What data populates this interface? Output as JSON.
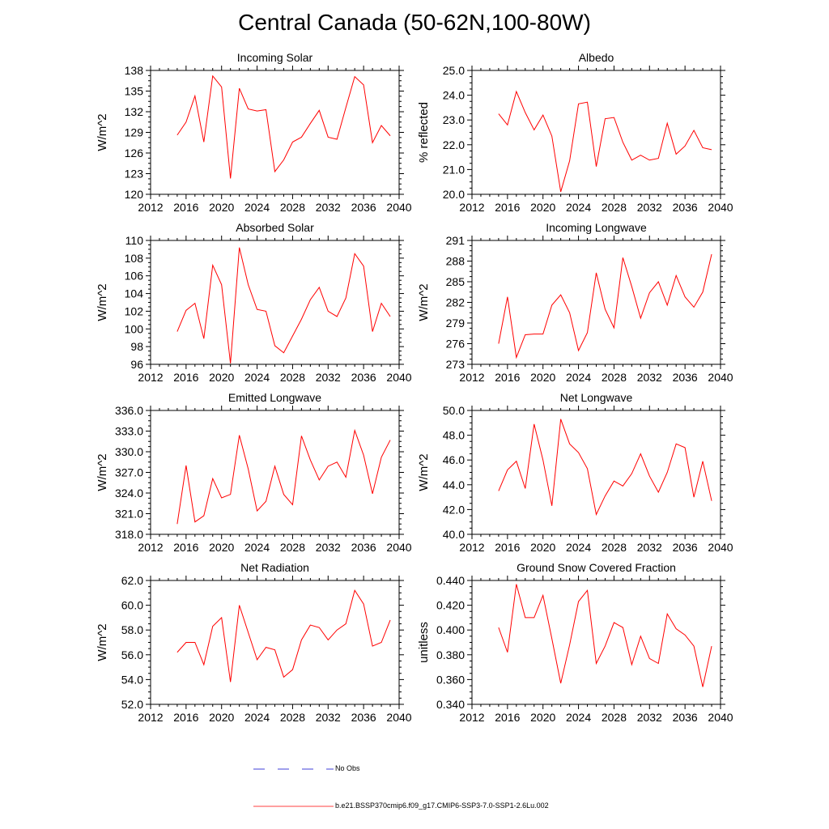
{
  "title": "Central Canada (50-62N,100-80W)",
  "colors": {
    "series": "#ff0000",
    "obs": "#0000cc",
    "axis": "#000000"
  },
  "legend": {
    "obs_label": "No Obs",
    "model_label": "b.e21.BSSP370cmip6.f09_g17.CMIP6-SSP3-7.0-SSP1-2.6Lu.002"
  },
  "chart_data": [
    {
      "type": "line",
      "title": "Incoming Solar",
      "ylabel": "W/m^2",
      "xlim": [
        2012,
        2040
      ],
      "x_ticks": [
        2012,
        2016,
        2020,
        2024,
        2028,
        2032,
        2036,
        2040
      ],
      "ylim": [
        120,
        138
      ],
      "y_ticks": [
        "120",
        "123",
        "126",
        "129",
        "132",
        "135",
        "138"
      ],
      "grid": false,
      "series": [
        {
          "x": [
            2015,
            2016,
            2017,
            2018,
            2019,
            2020,
            2021,
            2022,
            2023,
            2024,
            2025,
            2026,
            2027,
            2028,
            2029,
            2030,
            2031,
            2032,
            2033,
            2034,
            2035,
            2036,
            2037,
            2038,
            2039
          ],
          "values": [
            128.6,
            130.5,
            134.3,
            127.6,
            137.2,
            135.6,
            122.3,
            135.4,
            132.4,
            132.1,
            132.3,
            123.3,
            125.0,
            127.6,
            128.3,
            130.3,
            132.2,
            128.3,
            128.0,
            132.6,
            137.1,
            135.9,
            127.5,
            130.0,
            128.5
          ]
        }
      ]
    },
    {
      "type": "line",
      "title": "Albedo",
      "ylabel": "% reflected",
      "xlim": [
        2012,
        2040
      ],
      "x_ticks": [
        2012,
        2016,
        2020,
        2024,
        2028,
        2032,
        2036,
        2040
      ],
      "ylim": [
        20.0,
        25.0
      ],
      "y_ticks": [
        "20.0",
        "21.0",
        "22.0",
        "23.0",
        "24.0",
        "25.0"
      ],
      "grid": false,
      "series": [
        {
          "x": [
            2015,
            2016,
            2017,
            2018,
            2019,
            2020,
            2021,
            2022,
            2023,
            2024,
            2025,
            2026,
            2027,
            2028,
            2029,
            2030,
            2031,
            2032,
            2033,
            2034,
            2035,
            2036,
            2037,
            2038,
            2039
          ],
          "values": [
            23.25,
            22.8,
            24.15,
            23.3,
            22.6,
            23.2,
            22.35,
            20.1,
            21.35,
            23.65,
            23.72,
            21.12,
            23.05,
            23.1,
            22.1,
            21.38,
            21.58,
            21.38,
            21.45,
            22.87,
            21.62,
            21.95,
            22.58,
            21.88,
            21.8
          ]
        }
      ]
    },
    {
      "type": "line",
      "title": "Absorbed Solar",
      "ylabel": "W/m^2",
      "xlim": [
        2012,
        2040
      ],
      "x_ticks": [
        2012,
        2016,
        2020,
        2024,
        2028,
        2032,
        2036,
        2040
      ],
      "ylim": [
        96,
        110
      ],
      "y_ticks": [
        "96",
        "98",
        "100",
        "102",
        "104",
        "106",
        "108",
        "110"
      ],
      "grid": false,
      "series": [
        {
          "x": [
            2015,
            2016,
            2017,
            2018,
            2019,
            2020,
            2021,
            2022,
            2023,
            2024,
            2025,
            2026,
            2027,
            2028,
            2029,
            2030,
            2031,
            2032,
            2033,
            2034,
            2035,
            2036,
            2037,
            2038,
            2039
          ],
          "values": [
            99.7,
            102.1,
            102.9,
            98.9,
            107.2,
            105.0,
            96.1,
            109.2,
            105.0,
            102.2,
            102.0,
            98.1,
            97.3,
            99.2,
            101.1,
            103.3,
            104.7,
            102.0,
            101.4,
            103.5,
            108.5,
            107.1,
            99.7,
            102.9,
            101.4
          ]
        }
      ]
    },
    {
      "type": "line",
      "title": "Incoming Longwave",
      "ylabel": "W/m^2",
      "xlim": [
        2012,
        2040
      ],
      "x_ticks": [
        2012,
        2016,
        2020,
        2024,
        2028,
        2032,
        2036,
        2040
      ],
      "ylim": [
        273,
        291
      ],
      "y_ticks": [
        "273",
        "276",
        "279",
        "282",
        "285",
        "288",
        "291"
      ],
      "grid": false,
      "series": [
        {
          "x": [
            2015,
            2016,
            2017,
            2018,
            2019,
            2020,
            2021,
            2022,
            2023,
            2024,
            2025,
            2026,
            2027,
            2028,
            2029,
            2030,
            2031,
            2032,
            2033,
            2034,
            2035,
            2036,
            2037,
            2038,
            2039
          ],
          "values": [
            276.0,
            282.8,
            274.0,
            277.3,
            277.4,
            277.4,
            281.6,
            283.1,
            280.5,
            275.0,
            277.6,
            286.3,
            281.0,
            278.3,
            288.5,
            284.3,
            279.7,
            283.4,
            285.0,
            281.6,
            285.9,
            282.8,
            281.3,
            283.5,
            289.0
          ]
        }
      ]
    },
    {
      "type": "line",
      "title": "Emitted Longwave",
      "ylabel": "W/m^2",
      "xlim": [
        2012,
        2040
      ],
      "x_ticks": [
        2012,
        2016,
        2020,
        2024,
        2028,
        2032,
        2036,
        2040
      ],
      "ylim": [
        318.0,
        336.0
      ],
      "y_ticks": [
        "318.0",
        "321.0",
        "324.0",
        "327.0",
        "330.0",
        "333.0",
        "336.0"
      ],
      "grid": false,
      "series": [
        {
          "x": [
            2015,
            2016,
            2017,
            2018,
            2019,
            2020,
            2021,
            2022,
            2023,
            2024,
            2025,
            2026,
            2027,
            2028,
            2029,
            2030,
            2031,
            2032,
            2033,
            2034,
            2035,
            2036,
            2037,
            2038,
            2039
          ],
          "values": [
            319.5,
            328.0,
            319.8,
            320.7,
            326.1,
            323.3,
            323.8,
            332.4,
            327.5,
            321.4,
            322.8,
            327.9,
            323.8,
            322.3,
            332.3,
            328.8,
            325.9,
            327.9,
            328.5,
            326.3,
            333.1,
            329.5,
            323.9,
            329.2,
            331.7
          ]
        }
      ]
    },
    {
      "type": "line",
      "title": "Net Longwave",
      "ylabel": "W/m^2",
      "xlim": [
        2012,
        2040
      ],
      "x_ticks": [
        2012,
        2016,
        2020,
        2024,
        2028,
        2032,
        2036,
        2040
      ],
      "ylim": [
        40.0,
        50.0
      ],
      "y_ticks": [
        "40.0",
        "42.0",
        "44.0",
        "46.0",
        "48.0",
        "50.0"
      ],
      "grid": false,
      "series": [
        {
          "x": [
            2015,
            2016,
            2017,
            2018,
            2019,
            2020,
            2021,
            2022,
            2023,
            2024,
            2025,
            2026,
            2027,
            2028,
            2029,
            2030,
            2031,
            2032,
            2033,
            2034,
            2035,
            2036,
            2037,
            2038,
            2039
          ],
          "values": [
            43.5,
            45.2,
            45.9,
            43.7,
            48.9,
            46.0,
            42.3,
            49.3,
            47.3,
            46.6,
            45.3,
            41.6,
            43.1,
            44.3,
            43.9,
            44.9,
            46.5,
            44.7,
            43.4,
            45.0,
            47.3,
            47.0,
            43.0,
            45.9,
            42.7
          ]
        }
      ]
    },
    {
      "type": "line",
      "title": "Net Radiation",
      "ylabel": "W/m^2",
      "xlim": [
        2012,
        2040
      ],
      "x_ticks": [
        2012,
        2016,
        2020,
        2024,
        2028,
        2032,
        2036,
        2040
      ],
      "ylim": [
        52.0,
        62.0
      ],
      "y_ticks": [
        "52.0",
        "54.0",
        "56.0",
        "58.0",
        "60.0",
        "62.0"
      ],
      "grid": false,
      "series": [
        {
          "x": [
            2015,
            2016,
            2017,
            2018,
            2019,
            2020,
            2021,
            2022,
            2023,
            2024,
            2025,
            2026,
            2027,
            2028,
            2029,
            2030,
            2031,
            2032,
            2033,
            2034,
            2035,
            2036,
            2037,
            2038,
            2039
          ],
          "values": [
            56.2,
            57.0,
            57.0,
            55.2,
            58.3,
            59.0,
            53.8,
            60.0,
            57.8,
            55.6,
            56.6,
            56.4,
            54.2,
            54.8,
            57.2,
            58.4,
            58.2,
            57.2,
            58.0,
            58.5,
            61.2,
            60.1,
            56.7,
            57.0,
            58.8
          ]
        }
      ]
    },
    {
      "type": "line",
      "title": "Ground Snow Covered Fraction",
      "ylabel": "unitless",
      "xlim": [
        2012,
        2040
      ],
      "x_ticks": [
        2012,
        2016,
        2020,
        2024,
        2028,
        2032,
        2036,
        2040
      ],
      "ylim": [
        0.34,
        0.44
      ],
      "y_ticks": [
        "0.340",
        "0.360",
        "0.380",
        "0.400",
        "0.420",
        "0.440"
      ],
      "grid": false,
      "series": [
        {
          "x": [
            2015,
            2016,
            2017,
            2018,
            2019,
            2020,
            2021,
            2022,
            2023,
            2024,
            2025,
            2026,
            2027,
            2028,
            2029,
            2030,
            2031,
            2032,
            2033,
            2034,
            2035,
            2036,
            2037,
            2038,
            2039
          ],
          "values": [
            0.402,
            0.382,
            0.437,
            0.41,
            0.41,
            0.428,
            0.393,
            0.357,
            0.388,
            0.423,
            0.432,
            0.373,
            0.387,
            0.406,
            0.402,
            0.372,
            0.395,
            0.377,
            0.373,
            0.413,
            0.401,
            0.396,
            0.387,
            0.354,
            0.387
          ]
        }
      ]
    }
  ]
}
